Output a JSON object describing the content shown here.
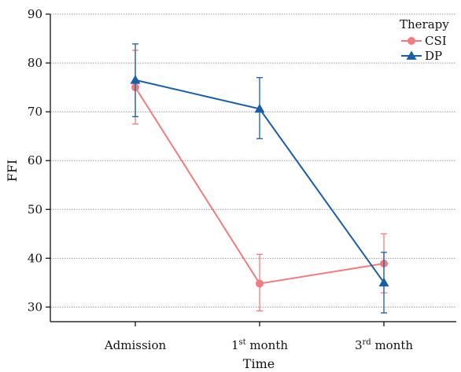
{
  "chart_data": {
    "type": "line",
    "categories": [
      "Admission",
      "1st month",
      "3rd month"
    ],
    "category_labels": [
      {
        "base": "Admission",
        "sup": "",
        "rest": ""
      },
      {
        "base": "1",
        "sup": "st",
        "rest": " month"
      },
      {
        "base": "3",
        "sup": "rd",
        "rest": " month"
      }
    ],
    "xlabel": "Time",
    "ylabel": "FFI",
    "ylim": [
      27,
      90
    ],
    "yticks": [
      30,
      40,
      50,
      60,
      70,
      80,
      90
    ],
    "grid": true,
    "legend": {
      "title": "Therapy",
      "position": "top-right"
    },
    "series": [
      {
        "name": "CSI",
        "color": "#f07c80",
        "marker": "circle",
        "values": [
          75.0,
          34.8,
          38.9
        ],
        "error_low": [
          67.5,
          29.2,
          32.9
        ],
        "error_high": [
          82.6,
          40.8,
          45.0
        ]
      },
      {
        "name": "DP",
        "color": "#1a5ea8",
        "marker": "triangle",
        "values": [
          76.5,
          70.6,
          35.0
        ],
        "error_low": [
          69.0,
          64.5,
          28.8
        ],
        "error_high": [
          83.9,
          77.0,
          41.2
        ]
      }
    ]
  }
}
